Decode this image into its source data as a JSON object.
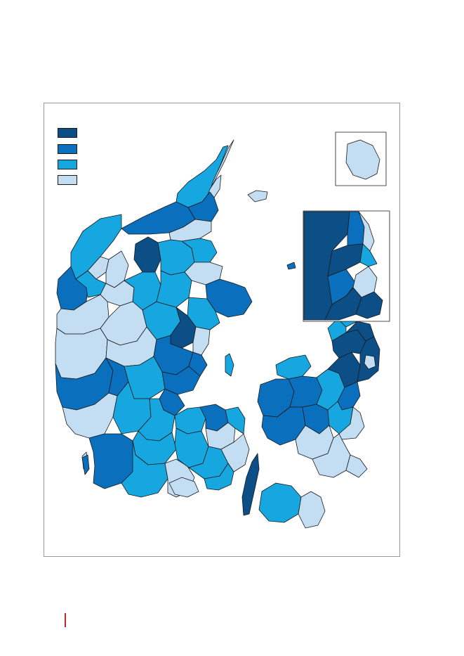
{
  "map": {
    "colors": {
      "class_1": "#0b4f86",
      "class_2": "#0a6fbd",
      "class_3": "#16a6e0",
      "class_4": "#c3ddf3",
      "sea": "#ffffff",
      "border": "#1a1a1a",
      "frame": "#9a9a9a",
      "accent_rule": "#c0282d"
    },
    "legend": [
      {
        "class": "class_1",
        "label": ""
      },
      {
        "class": "class_2",
        "label": ""
      },
      {
        "class": "class_3",
        "label": ""
      },
      {
        "class": "class_4",
        "label": ""
      }
    ],
    "insets": [
      {
        "name": "bornholm-inset",
        "dominant_class": "class_4"
      },
      {
        "name": "copenhagen-inset",
        "dominant_class": "class_1"
      }
    ]
  }
}
